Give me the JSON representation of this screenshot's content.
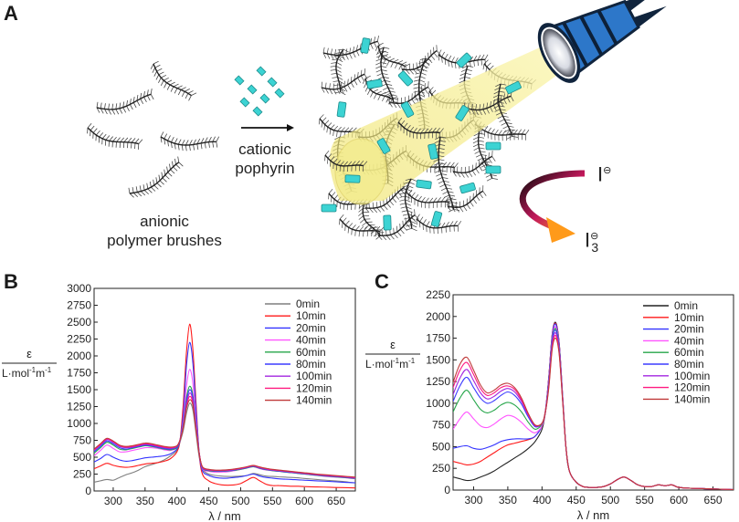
{
  "panel_a": {
    "letter": "A",
    "brushes_label_1": "anionic",
    "brushes_label_2": "polymer brushes",
    "arrow_label_1": "cationic",
    "arrow_label_2": "pophyrin",
    "iodide_label": "I",
    "triiodide_label": "I",
    "triiodide_subscript": "3",
    "charge_symbol": "⊖",
    "porphyrin_color": "#3cd3d3",
    "light_cone_color": "#f5ef8a",
    "flashlight_color": "#2d77c9",
    "arrow_gradient": [
      "#0a0a0a",
      "#c2185b",
      "#ff9a1a"
    ]
  },
  "chart_data": [
    {
      "panel": "B",
      "type": "line",
      "title": "",
      "ylabel_top": "ε",
      "ylabel_bottom": "L·mol",
      "ylabel_exp1": "-1",
      "ylabel_mid": "m",
      "ylabel_exp2": "-1",
      "xlabel": "λ / nm",
      "xlim": [
        270,
        680
      ],
      "ylim": [
        0,
        3000
      ],
      "xticks": [
        300,
        350,
        400,
        450,
        500,
        550,
        600,
        650
      ],
      "yticks": [
        0,
        250,
        500,
        750,
        1000,
        1250,
        1500,
        1750,
        2000,
        2250,
        2500,
        2750,
        3000
      ],
      "legend_position": "top-right",
      "x": [
        270,
        280,
        290,
        300,
        310,
        320,
        330,
        340,
        350,
        360,
        370,
        380,
        390,
        400,
        405,
        410,
        415,
        420,
        425,
        430,
        435,
        440,
        450,
        460,
        470,
        480,
        490,
        500,
        510,
        520,
        530,
        540,
        550,
        560,
        570,
        580,
        590,
        600,
        620,
        640,
        660,
        680
      ],
      "series": [
        {
          "name": "0min",
          "color": "#7f7f7f",
          "values": [
            130,
            150,
            170,
            160,
            200,
            240,
            270,
            310,
            360,
            390,
            420,
            460,
            520,
            600,
            730,
            900,
            1150,
            1300,
            1200,
            850,
            500,
            320,
            250,
            230,
            220,
            215,
            215,
            220,
            230,
            260,
            240,
            220,
            215,
            210,
            205,
            200,
            195,
            185,
            170,
            155,
            140,
            120
          ]
        },
        {
          "name": "10min",
          "color": "#ff1a1a",
          "values": [
            330,
            370,
            410,
            380,
            360,
            350,
            360,
            380,
            400,
            410,
            420,
            440,
            480,
            580,
            760,
            1300,
            2050,
            2470,
            2100,
            1300,
            550,
            250,
            150,
            110,
            90,
            85,
            90,
            110,
            160,
            200,
            150,
            100,
            80,
            80,
            75,
            70,
            70,
            65,
            60,
            55,
            50,
            45
          ]
        },
        {
          "name": "20min",
          "color": "#3333ff",
          "values": [
            430,
            480,
            540,
            500,
            460,
            440,
            450,
            470,
            490,
            500,
            510,
            520,
            550,
            620,
            760,
            1150,
            1850,
            2200,
            1900,
            1200,
            560,
            300,
            230,
            200,
            190,
            190,
            200,
            210,
            230,
            250,
            220,
            200,
            190,
            180,
            175,
            170,
            165,
            160,
            150,
            140,
            130,
            120
          ]
        },
        {
          "name": "40min",
          "color": "#ff55ff",
          "values": [
            520,
            600,
            680,
            630,
            580,
            580,
            600,
            620,
            640,
            640,
            630,
            610,
            600,
            640,
            760,
            1050,
            1550,
            1800,
            1600,
            1050,
            560,
            330,
            290,
            280,
            280,
            285,
            300,
            320,
            340,
            360,
            330,
            310,
            300,
            290,
            280,
            270,
            260,
            250,
            230,
            210,
            200,
            180
          ]
        },
        {
          "name": "60min",
          "color": "#26a64a",
          "values": [
            560,
            640,
            720,
            680,
            620,
            610,
            630,
            650,
            670,
            660,
            640,
            620,
            610,
            640,
            760,
            1000,
            1380,
            1550,
            1420,
            980,
            560,
            340,
            300,
            290,
            290,
            295,
            305,
            320,
            340,
            360,
            335,
            315,
            300,
            290,
            280,
            270,
            260,
            250,
            230,
            215,
            200,
            185
          ]
        },
        {
          "name": "80min",
          "color": "#3b3bff",
          "values": [
            580,
            660,
            740,
            700,
            640,
            620,
            640,
            660,
            680,
            670,
            650,
            630,
            620,
            650,
            760,
            980,
            1330,
            1500,
            1380,
            960,
            560,
            345,
            305,
            295,
            295,
            300,
            310,
            325,
            345,
            365,
            340,
            320,
            305,
            295,
            285,
            275,
            265,
            255,
            235,
            220,
            205,
            190
          ]
        },
        {
          "name": "100min",
          "color": "#a326e0",
          "values": [
            600,
            680,
            760,
            720,
            660,
            640,
            650,
            670,
            690,
            680,
            660,
            640,
            630,
            660,
            760,
            960,
            1280,
            1450,
            1340,
            940,
            560,
            350,
            310,
            300,
            300,
            305,
            315,
            330,
            350,
            370,
            345,
            325,
            310,
            300,
            290,
            280,
            270,
            260,
            240,
            225,
            210,
            195
          ]
        },
        {
          "name": "120min",
          "color": "#ff1a80",
          "values": [
            610,
            690,
            770,
            730,
            670,
            650,
            660,
            680,
            700,
            690,
            670,
            650,
            640,
            665,
            760,
            950,
            1250,
            1400,
            1300,
            920,
            555,
            355,
            315,
            305,
            305,
            310,
            320,
            335,
            355,
            375,
            350,
            330,
            315,
            305,
            295,
            285,
            275,
            265,
            245,
            230,
            215,
            200
          ]
        },
        {
          "name": "140min",
          "color": "#c03a3a",
          "values": [
            620,
            700,
            780,
            740,
            680,
            660,
            670,
            690,
            710,
            700,
            680,
            660,
            650,
            670,
            760,
            940,
            1220,
            1350,
            1270,
            900,
            550,
            360,
            320,
            310,
            310,
            315,
            325,
            340,
            360,
            380,
            355,
            335,
            320,
            310,
            300,
            290,
            280,
            270,
            250,
            235,
            220,
            205
          ]
        }
      ]
    },
    {
      "panel": "C",
      "type": "line",
      "title": "",
      "ylabel_top": "ε",
      "ylabel_bottom": "L·mol",
      "ylabel_exp1": "-1",
      "ylabel_mid": "m",
      "ylabel_exp2": "-1",
      "xlabel": "λ / nm",
      "xlim": [
        270,
        680
      ],
      "ylim": [
        0,
        2250
      ],
      "xticks": [
        300,
        350,
        400,
        450,
        500,
        550,
        600,
        650
      ],
      "yticks": [
        0,
        250,
        500,
        750,
        1000,
        1250,
        1500,
        1750,
        2000,
        2250
      ],
      "legend_position": "top-right",
      "x": [
        270,
        280,
        290,
        300,
        310,
        320,
        330,
        340,
        350,
        360,
        370,
        380,
        390,
        400,
        405,
        410,
        415,
        420,
        425,
        430,
        435,
        440,
        450,
        460,
        470,
        480,
        490,
        500,
        510,
        520,
        530,
        540,
        550,
        560,
        570,
        580,
        590,
        600,
        620,
        640,
        660,
        680
      ],
      "series": [
        {
          "name": "0min",
          "color": "#222222",
          "values": [
            150,
            130,
            110,
            120,
            150,
            180,
            220,
            270,
            320,
            370,
            420,
            480,
            560,
            700,
            900,
            1300,
            1800,
            1930,
            1700,
            1100,
            500,
            220,
            90,
            40,
            30,
            30,
            40,
            70,
            120,
            150,
            110,
            60,
            40,
            40,
            60,
            50,
            60,
            30,
            20,
            15,
            10,
            5
          ]
        },
        {
          "name": "10min",
          "color": "#ff1a1a",
          "values": [
            330,
            310,
            290,
            300,
            330,
            380,
            430,
            480,
            520,
            540,
            560,
            580,
            620,
            740,
            920,
            1310,
            1800,
            1920,
            1700,
            1100,
            500,
            220,
            90,
            40,
            30,
            30,
            40,
            70,
            120,
            150,
            110,
            60,
            40,
            40,
            60,
            50,
            60,
            30,
            20,
            15,
            10,
            5
          ]
        },
        {
          "name": "20min",
          "color": "#3333ff",
          "values": [
            480,
            500,
            510,
            480,
            470,
            490,
            520,
            560,
            580,
            590,
            590,
            590,
            620,
            740,
            910,
            1300,
            1790,
            1910,
            1690,
            1100,
            500,
            220,
            90,
            40,
            30,
            30,
            40,
            70,
            120,
            150,
            110,
            60,
            40,
            40,
            60,
            50,
            60,
            30,
            20,
            15,
            10,
            5
          ]
        },
        {
          "name": "40min",
          "color": "#ff55ff",
          "values": [
            700,
            820,
            900,
            820,
            740,
            720,
            760,
            820,
            860,
            840,
            780,
            700,
            660,
            740,
            900,
            1280,
            1760,
            1880,
            1670,
            1090,
            500,
            220,
            90,
            40,
            30,
            30,
            40,
            70,
            120,
            150,
            110,
            60,
            40,
            40,
            60,
            50,
            60,
            30,
            20,
            15,
            10,
            5
          ]
        },
        {
          "name": "60min",
          "color": "#26a64a",
          "values": [
            900,
            1060,
            1150,
            1040,
            930,
            890,
            920,
            980,
            1010,
            980,
            900,
            780,
            700,
            760,
            900,
            1260,
            1740,
            1860,
            1650,
            1080,
            500,
            220,
            90,
            40,
            30,
            30,
            40,
            70,
            120,
            150,
            110,
            60,
            40,
            40,
            60,
            50,
            60,
            30,
            20,
            15,
            10,
            5
          ]
        },
        {
          "name": "80min",
          "color": "#3b3bff",
          "values": [
            1020,
            1200,
            1300,
            1180,
            1060,
            1000,
            1030,
            1090,
            1130,
            1090,
            990,
            840,
            730,
            770,
            900,
            1240,
            1720,
            1840,
            1630,
            1070,
            500,
            220,
            90,
            40,
            30,
            30,
            40,
            70,
            120,
            150,
            110,
            60,
            40,
            40,
            60,
            50,
            60,
            30,
            20,
            15,
            10,
            5
          ]
        },
        {
          "name": "100min",
          "color": "#a326e0",
          "values": [
            1100,
            1290,
            1390,
            1260,
            1120,
            1050,
            1080,
            1140,
            1170,
            1130,
            1020,
            860,
            740,
            770,
            900,
            1220,
            1690,
            1810,
            1610,
            1060,
            500,
            220,
            90,
            40,
            30,
            30,
            40,
            70,
            120,
            150,
            110,
            60,
            40,
            40,
            60,
            50,
            60,
            30,
            20,
            15,
            10,
            5
          ]
        },
        {
          "name": "120min",
          "color": "#ff1a80",
          "values": [
            1180,
            1380,
            1470,
            1330,
            1170,
            1090,
            1120,
            1180,
            1200,
            1160,
            1040,
            870,
            745,
            770,
            900,
            1200,
            1660,
            1780,
            1590,
            1050,
            500,
            220,
            90,
            40,
            30,
            30,
            40,
            70,
            120,
            150,
            110,
            60,
            40,
            40,
            60,
            50,
            60,
            30,
            20,
            15,
            10,
            5
          ]
        },
        {
          "name": "140min",
          "color": "#c03a3a",
          "values": [
            1240,
            1450,
            1530,
            1380,
            1210,
            1120,
            1150,
            1210,
            1230,
            1180,
            1060,
            880,
            750,
            770,
            900,
            1180,
            1630,
            1750,
            1570,
            1040,
            500,
            220,
            90,
            40,
            30,
            30,
            40,
            70,
            120,
            150,
            110,
            60,
            40,
            40,
            60,
            50,
            60,
            30,
            20,
            15,
            10,
            5
          ]
        }
      ]
    }
  ]
}
